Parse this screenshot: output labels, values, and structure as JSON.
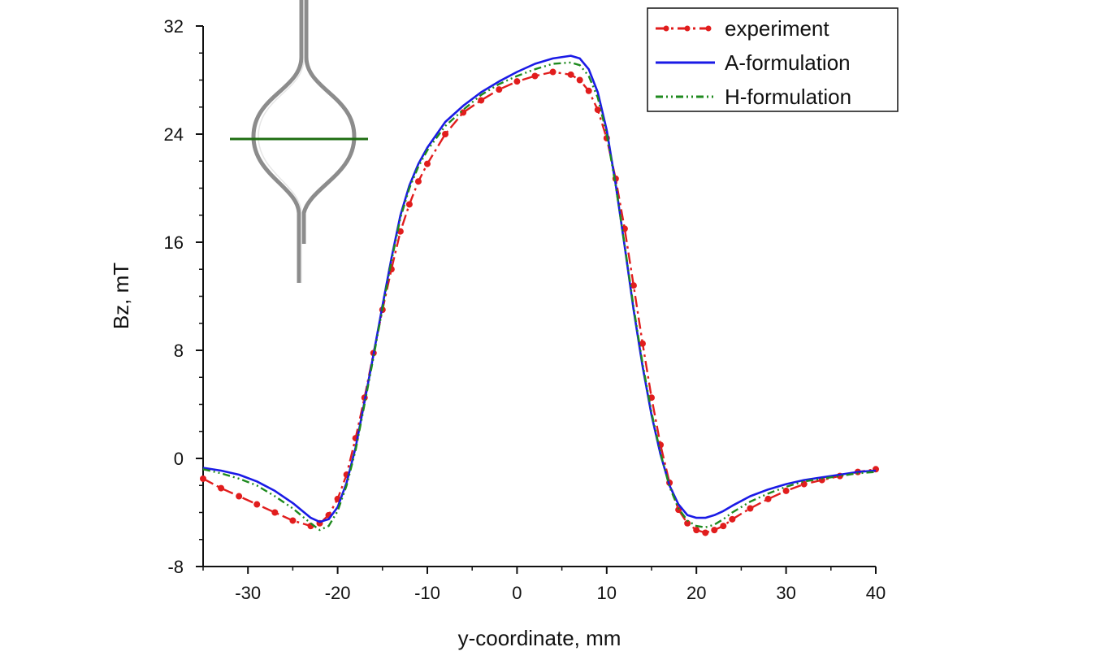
{
  "chart_data": {
    "type": "line",
    "title": "",
    "xlabel": "y-coordinate, mm",
    "ylabel": "Bz, mT",
    "xlim": [
      -35,
      40
    ],
    "ylim": [
      -8,
      32
    ],
    "xticks": [
      -30,
      -20,
      -10,
      0,
      10,
      20,
      30,
      40
    ],
    "yticks": [
      -8,
      0,
      8,
      16,
      24,
      32
    ],
    "legend_position": "top-right",
    "inset": "grey teardrop-shaped coil outline with a green horizontal measurement line across its widest part",
    "series": [
      {
        "name": "experiment",
        "color": "#e11d1d",
        "style": "dash-dot with dot markers",
        "x": [
          -35,
          -33,
          -31,
          -29,
          -27,
          -25,
          -23,
          -22,
          -21,
          -20,
          -19,
          -18,
          -17,
          -16,
          -15,
          -14,
          -13,
          -12,
          -11,
          -10,
          -8,
          -6,
          -4,
          -2,
          0,
          2,
          4,
          6,
          7,
          8,
          9,
          10,
          11,
          12,
          13,
          14,
          15,
          16,
          17,
          18,
          19,
          20,
          21,
          22,
          23,
          24,
          26,
          28,
          30,
          32,
          34,
          36,
          38,
          40
        ],
        "y": [
          -1.5,
          -2.2,
          -2.8,
          -3.4,
          -4.0,
          -4.6,
          -5.0,
          -4.8,
          -4.2,
          -3.0,
          -1.2,
          1.5,
          4.5,
          7.8,
          11.0,
          14.0,
          16.8,
          18.8,
          20.5,
          21.8,
          24.0,
          25.6,
          26.5,
          27.3,
          27.9,
          28.3,
          28.6,
          28.4,
          28.0,
          27.2,
          25.8,
          23.7,
          20.7,
          17.0,
          12.8,
          8.5,
          4.5,
          1.0,
          -1.8,
          -3.8,
          -4.8,
          -5.3,
          -5.5,
          -5.3,
          -5.0,
          -4.5,
          -3.7,
          -3.0,
          -2.4,
          -1.9,
          -1.6,
          -1.3,
          -1.0,
          -0.8
        ]
      },
      {
        "name": "A-formulation",
        "color": "#1a1ae6",
        "style": "solid",
        "x": [
          -35,
          -33,
          -31,
          -29,
          -27,
          -25,
          -23,
          -22,
          -21,
          -20,
          -19,
          -18,
          -17,
          -16,
          -15,
          -14,
          -13,
          -12,
          -11,
          -10,
          -8,
          -6,
          -4,
          -2,
          0,
          2,
          4,
          6,
          7,
          8,
          9,
          10,
          11,
          12,
          13,
          14,
          15,
          16,
          17,
          18,
          19,
          20,
          21,
          22,
          23,
          24,
          26,
          28,
          30,
          32,
          34,
          36,
          38,
          40
        ],
        "y": [
          -0.7,
          -0.9,
          -1.2,
          -1.7,
          -2.4,
          -3.3,
          -4.4,
          -4.7,
          -4.5,
          -3.6,
          -1.8,
          0.8,
          4.2,
          7.7,
          11.3,
          14.8,
          18.0,
          20.2,
          21.8,
          23.0,
          24.9,
          26.1,
          27.1,
          27.9,
          28.6,
          29.2,
          29.6,
          29.8,
          29.6,
          28.8,
          27.1,
          24.3,
          20.3,
          15.7,
          11.0,
          6.8,
          3.2,
          0.3,
          -2.0,
          -3.4,
          -4.2,
          -4.4,
          -4.4,
          -4.2,
          -3.9,
          -3.5,
          -2.8,
          -2.3,
          -1.9,
          -1.6,
          -1.4,
          -1.2,
          -1.0,
          -0.9
        ]
      },
      {
        "name": "H-formulation",
        "color": "#1e8a1e",
        "style": "dash-dot-dot",
        "x": [
          -35,
          -33,
          -31,
          -29,
          -27,
          -25,
          -23,
          -22,
          -21,
          -20,
          -19,
          -18,
          -17,
          -16,
          -15,
          -14,
          -13,
          -12,
          -11,
          -10,
          -8,
          -6,
          -4,
          -2,
          0,
          2,
          4,
          6,
          7,
          8,
          9,
          10,
          11,
          12,
          13,
          14,
          15,
          16,
          17,
          18,
          19,
          20,
          21,
          22,
          23,
          24,
          26,
          28,
          30,
          32,
          34,
          36,
          38,
          40
        ],
        "y": [
          -0.8,
          -1.1,
          -1.5,
          -2.0,
          -2.8,
          -3.7,
          -4.8,
          -5.3,
          -5.0,
          -3.9,
          -2.0,
          0.6,
          4.0,
          7.5,
          11.1,
          14.6,
          17.8,
          20.0,
          21.6,
          22.8,
          24.6,
          25.8,
          26.9,
          27.7,
          28.3,
          28.8,
          29.2,
          29.3,
          29.1,
          28.3,
          26.7,
          24.0,
          20.2,
          15.8,
          11.2,
          7.0,
          3.4,
          0.4,
          -2.1,
          -3.7,
          -4.6,
          -5.0,
          -5.1,
          -4.9,
          -4.5,
          -4.0,
          -3.2,
          -2.6,
          -2.1,
          -1.7,
          -1.5,
          -1.3,
          -1.1,
          -1.0
        ]
      }
    ]
  }
}
